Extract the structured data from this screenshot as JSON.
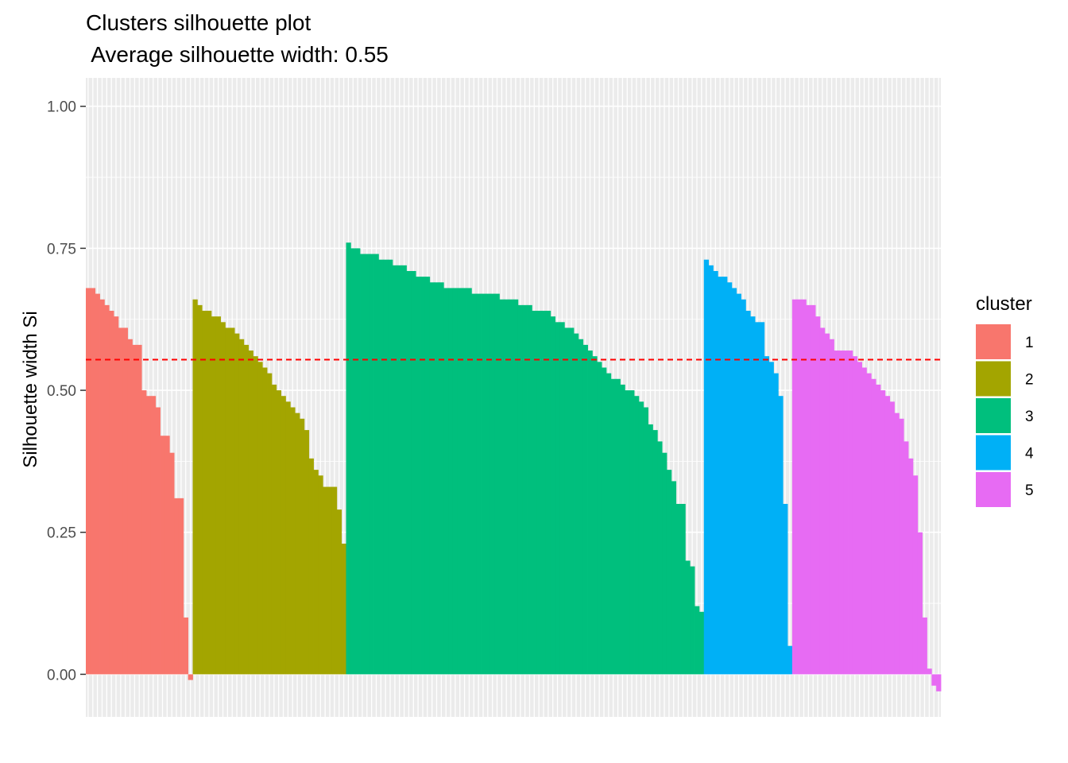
{
  "chart_data": {
    "type": "bar",
    "title": "Clusters silhouette plot",
    "subtitle": " Average silhouette width: 0.55",
    "xlabel": "",
    "ylabel": "Silhouette width Si",
    "ylim": [
      -0.075,
      1.05
    ],
    "yticks": [
      0.0,
      0.25,
      0.5,
      0.75,
      1.0
    ],
    "ytick_labels": [
      "0.00",
      "0.25",
      "0.50",
      "0.75",
      "1.00"
    ],
    "average_line": {
      "value": 0.554,
      "color": "#FF0000",
      "style": "dashed"
    },
    "grid": true,
    "panel_background": "#EBEBEB",
    "legend": {
      "title": "cluster",
      "position": "right"
    },
    "series": [
      {
        "name": "1",
        "color": "#F8766D",
        "values": [
          0.68,
          0.68,
          0.67,
          0.66,
          0.65,
          0.64,
          0.63,
          0.61,
          0.61,
          0.59,
          0.58,
          0.58,
          0.5,
          0.49,
          0.49,
          0.47,
          0.42,
          0.42,
          0.39,
          0.31,
          0.31,
          0.1,
          -0.01
        ]
      },
      {
        "name": "2",
        "color": "#A3A500",
        "values": [
          0.66,
          0.65,
          0.64,
          0.64,
          0.63,
          0.63,
          0.62,
          0.61,
          0.61,
          0.6,
          0.59,
          0.58,
          0.57,
          0.56,
          0.55,
          0.54,
          0.53,
          0.51,
          0.5,
          0.49,
          0.48,
          0.47,
          0.46,
          0.45,
          0.43,
          0.38,
          0.36,
          0.35,
          0.33,
          0.33,
          0.33,
          0.29,
          0.23
        ]
      },
      {
        "name": "3",
        "color": "#00BF7D",
        "values": [
          0.76,
          0.75,
          0.75,
          0.74,
          0.74,
          0.74,
          0.74,
          0.73,
          0.73,
          0.73,
          0.72,
          0.72,
          0.72,
          0.71,
          0.71,
          0.7,
          0.7,
          0.7,
          0.69,
          0.69,
          0.69,
          0.68,
          0.68,
          0.68,
          0.68,
          0.68,
          0.68,
          0.67,
          0.67,
          0.67,
          0.67,
          0.67,
          0.67,
          0.66,
          0.66,
          0.66,
          0.66,
          0.65,
          0.65,
          0.65,
          0.64,
          0.64,
          0.64,
          0.64,
          0.63,
          0.62,
          0.62,
          0.61,
          0.61,
          0.6,
          0.59,
          0.58,
          0.57,
          0.56,
          0.55,
          0.54,
          0.53,
          0.52,
          0.52,
          0.51,
          0.5,
          0.5,
          0.49,
          0.48,
          0.47,
          0.44,
          0.43,
          0.41,
          0.39,
          0.36,
          0.34,
          0.3,
          0.3,
          0.2,
          0.19,
          0.12,
          0.11
        ]
      },
      {
        "name": "4",
        "color": "#00B0F6",
        "values": [
          0.73,
          0.72,
          0.71,
          0.7,
          0.7,
          0.69,
          0.68,
          0.67,
          0.66,
          0.64,
          0.63,
          0.62,
          0.62,
          0.56,
          0.55,
          0.53,
          0.49,
          0.3,
          0.05
        ]
      },
      {
        "name": "5",
        "color": "#E76BF3",
        "values": [
          0.66,
          0.66,
          0.66,
          0.65,
          0.65,
          0.63,
          0.61,
          0.6,
          0.59,
          0.57,
          0.57,
          0.57,
          0.57,
          0.56,
          0.55,
          0.54,
          0.53,
          0.52,
          0.51,
          0.5,
          0.49,
          0.48,
          0.46,
          0.45,
          0.41,
          0.38,
          0.35,
          0.25,
          0.1,
          0.01,
          -0.02,
          -0.03
        ]
      }
    ]
  }
}
